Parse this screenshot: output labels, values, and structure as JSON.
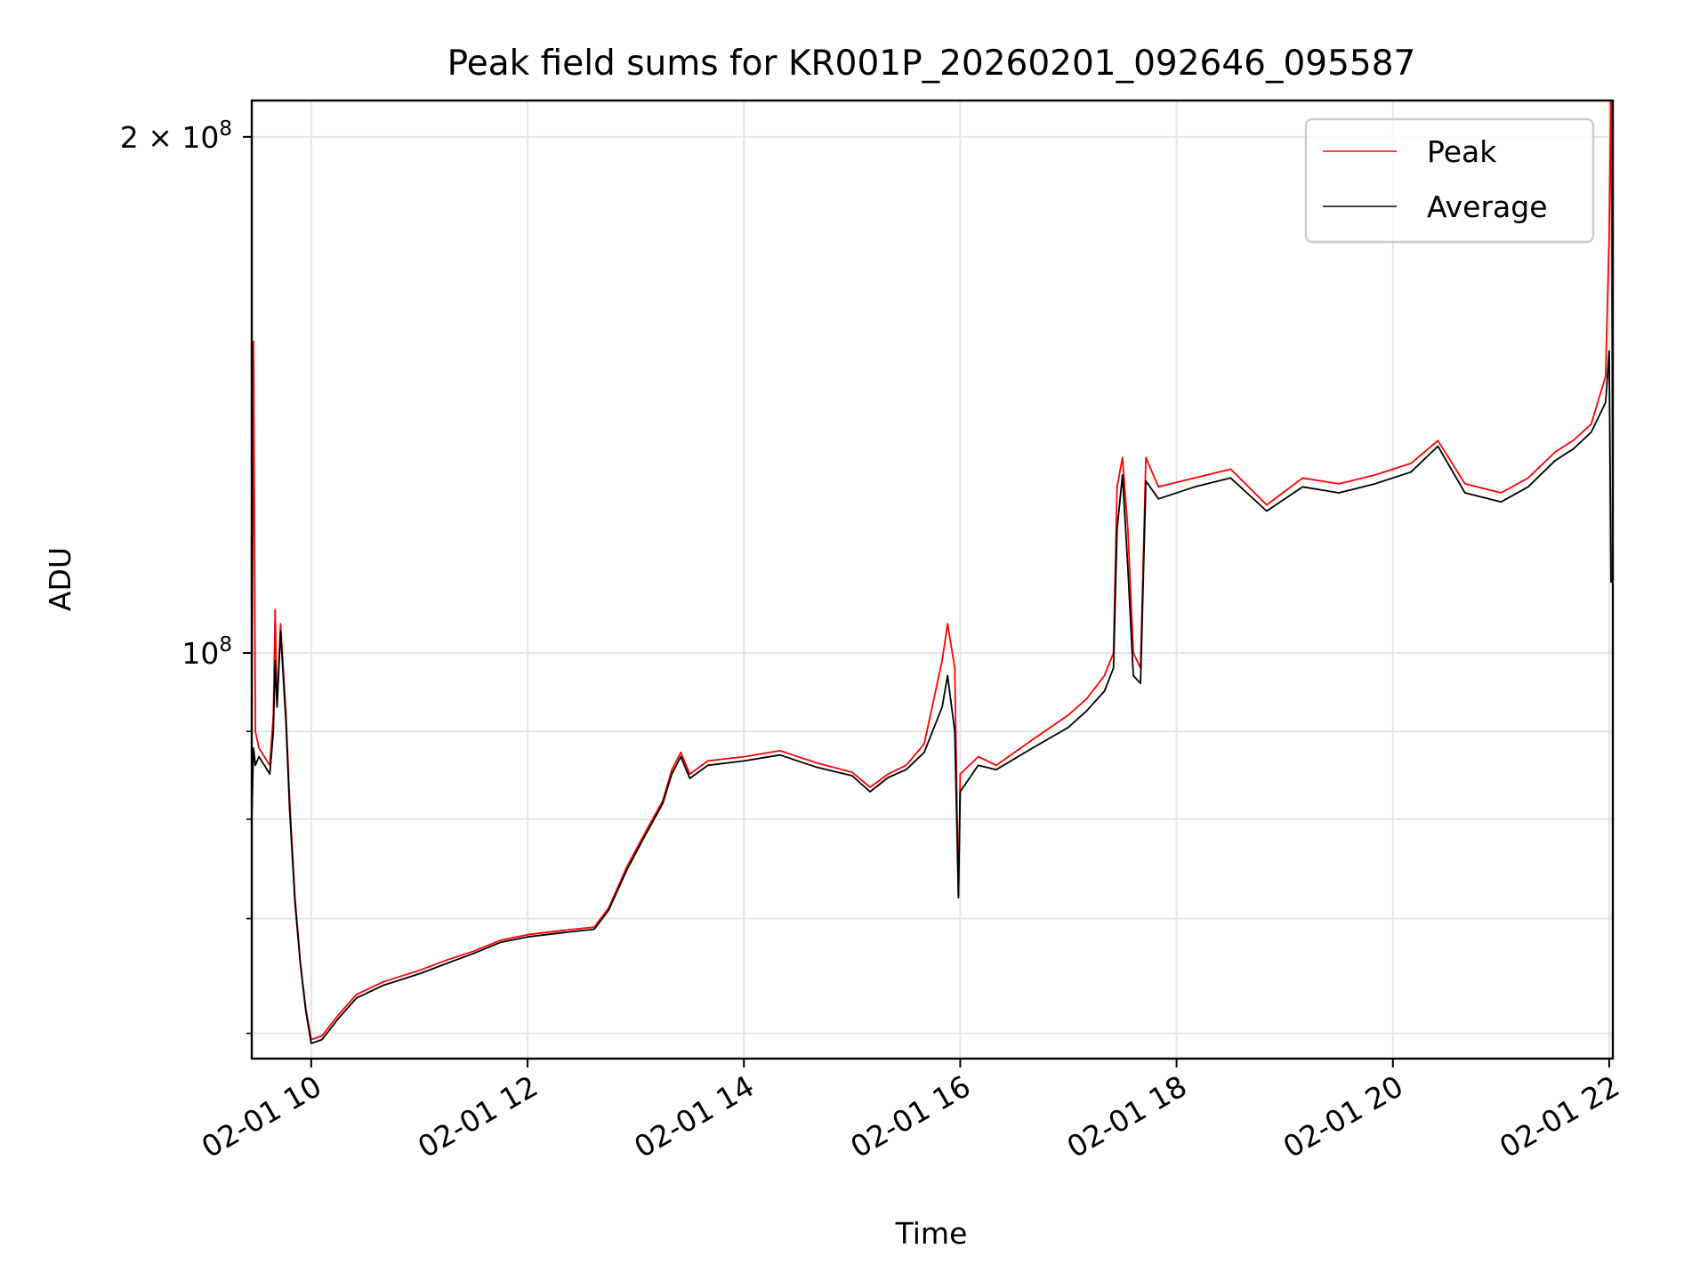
{
  "chart_data": {
    "type": "line",
    "title": "Peak field sums for KR001P_20260201_092646_095587",
    "xlabel": "Time",
    "ylabel": "ADU",
    "x_axis": "datetime",
    "xlim": [
      "2026-02-01 09:27",
      "2026-02-01 22:02"
    ],
    "xticks": [
      {
        "t": "2026-02-01 10:00",
        "label": "02-01 10"
      },
      {
        "t": "2026-02-01 12:00",
        "label": "02-01 12"
      },
      {
        "t": "2026-02-01 14:00",
        "label": "02-01 14"
      },
      {
        "t": "2026-02-01 16:00",
        "label": "02-01 16"
      },
      {
        "t": "2026-02-01 18:00",
        "label": "02-01 18"
      },
      {
        "t": "2026-02-01 20:00",
        "label": "02-01 20"
      },
      {
        "t": "2026-02-01 22:00",
        "label": "02-01 22"
      }
    ],
    "yscale": "log",
    "ylim": [
      58000000,
      210000000
    ],
    "yticks_major": [
      {
        "value": 100000000,
        "base": "10",
        "exp": "8",
        "mult": ""
      },
      {
        "value": 200000000,
        "base": "10",
        "exp": "8",
        "mult": "2 × "
      }
    ],
    "yticks_minor": [
      60000000,
      70000000,
      80000000,
      90000000
    ],
    "grid": true,
    "legend_position": "top-right",
    "series": [
      {
        "name": "Peak",
        "color": "#ff0000",
        "points": [
          [
            "2026-02-01 09:27",
            88000000
          ],
          [
            "2026-02-01 09:28",
            152000000
          ],
          [
            "2026-02-01 09:29",
            90000000
          ],
          [
            "2026-02-01 09:31",
            88000000
          ],
          [
            "2026-02-01 09:34",
            87000000
          ],
          [
            "2026-02-01 09:37",
            86000000
          ],
          [
            "2026-02-01 09:39",
            92000000
          ],
          [
            "2026-02-01 09:40",
            106000000
          ],
          [
            "2026-02-01 09:41",
            93000000
          ],
          [
            "2026-02-01 09:43",
            104000000
          ],
          [
            "2026-02-01 09:46",
            92000000
          ],
          [
            "2026-02-01 09:48",
            82000000
          ],
          [
            "2026-02-01 09:51",
            72000000
          ],
          [
            "2026-02-01 09:54",
            66000000
          ],
          [
            "2026-02-01 09:57",
            62000000
          ],
          [
            "2026-02-01 10:00",
            59500000
          ],
          [
            "2026-02-01 10:06",
            59800000
          ],
          [
            "2026-02-01 10:15",
            61500000
          ],
          [
            "2026-02-01 10:25",
            63200000
          ],
          [
            "2026-02-01 10:40",
            64300000
          ],
          [
            "2026-02-01 11:00",
            65300000
          ],
          [
            "2026-02-01 11:15",
            66200000
          ],
          [
            "2026-02-01 11:30",
            67000000
          ],
          [
            "2026-02-01 11:45",
            68000000
          ],
          [
            "2026-02-01 12:00",
            68500000
          ],
          [
            "2026-02-01 12:20",
            68900000
          ],
          [
            "2026-02-01 12:37",
            69200000
          ],
          [
            "2026-02-01 12:45",
            71000000
          ],
          [
            "2026-02-01 12:55",
            75000000
          ],
          [
            "2026-02-01 13:05",
            78500000
          ],
          [
            "2026-02-01 13:15",
            82000000
          ],
          [
            "2026-02-01 13:20",
            85500000
          ],
          [
            "2026-02-01 13:25",
            87500000
          ],
          [
            "2026-02-01 13:30",
            85000000
          ],
          [
            "2026-02-01 13:40",
            86500000
          ],
          [
            "2026-02-01 14:00",
            87000000
          ],
          [
            "2026-02-01 14:20",
            87700000
          ],
          [
            "2026-02-01 14:40",
            86300000
          ],
          [
            "2026-02-01 15:00",
            85200000
          ],
          [
            "2026-02-01 15:10",
            83500000
          ],
          [
            "2026-02-01 15:20",
            85000000
          ],
          [
            "2026-02-01 15:30",
            86000000
          ],
          [
            "2026-02-01 15:40",
            88500000
          ],
          [
            "2026-02-01 15:50",
            99000000
          ],
          [
            "2026-02-01 15:53",
            104000000
          ],
          [
            "2026-02-01 15:57",
            98000000
          ],
          [
            "2026-02-01 15:59",
            72000000
          ],
          [
            "2026-02-01 16:00",
            85000000
          ],
          [
            "2026-02-01 16:10",
            87000000
          ],
          [
            "2026-02-01 16:20",
            86000000
          ],
          [
            "2026-02-01 16:40",
            89000000
          ],
          [
            "2026-02-01 17:00",
            92000000
          ],
          [
            "2026-02-01 17:10",
            94000000
          ],
          [
            "2026-02-01 17:20",
            97000000
          ],
          [
            "2026-02-01 17:25",
            100000000
          ],
          [
            "2026-02-01 17:27",
            125000000
          ],
          [
            "2026-02-01 17:30",
            130000000
          ],
          [
            "2026-02-01 17:33",
            118000000
          ],
          [
            "2026-02-01 17:36",
            100000000
          ],
          [
            "2026-02-01 17:40",
            98000000
          ],
          [
            "2026-02-01 17:43",
            130000000
          ],
          [
            "2026-02-01 17:50",
            125000000
          ],
          [
            "2026-02-01 18:10",
            126500000
          ],
          [
            "2026-02-01 18:30",
            128000000
          ],
          [
            "2026-02-01 18:50",
            122000000
          ],
          [
            "2026-02-01 19:10",
            126500000
          ],
          [
            "2026-02-01 19:30",
            125500000
          ],
          [
            "2026-02-01 19:50",
            127000000
          ],
          [
            "2026-02-01 20:10",
            129000000
          ],
          [
            "2026-02-01 20:25",
            133000000
          ],
          [
            "2026-02-01 20:40",
            125500000
          ],
          [
            "2026-02-01 21:00",
            124000000
          ],
          [
            "2026-02-01 21:15",
            126500000
          ],
          [
            "2026-02-01 21:30",
            131000000
          ],
          [
            "2026-02-01 21:40",
            133000000
          ],
          [
            "2026-02-01 21:50",
            136000000
          ],
          [
            "2026-02-01 21:58",
            145000000
          ],
          [
            "2026-02-01 22:00",
            175000000
          ],
          [
            "2026-02-01 22:01",
            215000000
          ],
          [
            "2026-02-01 22:02",
            112000000
          ]
        ]
      },
      {
        "name": "Average",
        "color": "#000000",
        "points": [
          [
            "2026-02-01 09:27",
            80000000
          ],
          [
            "2026-02-01 09:28",
            88000000
          ],
          [
            "2026-02-01 09:29",
            86000000
          ],
          [
            "2026-02-01 09:31",
            87000000
          ],
          [
            "2026-02-01 09:34",
            86000000
          ],
          [
            "2026-02-01 09:37",
            85000000
          ],
          [
            "2026-02-01 09:39",
            90000000
          ],
          [
            "2026-02-01 09:40",
            99000000
          ],
          [
            "2026-02-01 09:41",
            93000000
          ],
          [
            "2026-02-01 09:43",
            103000000
          ],
          [
            "2026-02-01 09:46",
            91000000
          ],
          [
            "2026-02-01 09:48",
            81000000
          ],
          [
            "2026-02-01 09:51",
            71500000
          ],
          [
            "2026-02-01 09:54",
            65800000
          ],
          [
            "2026-02-01 09:57",
            61800000
          ],
          [
            "2026-02-01 10:00",
            59200000
          ],
          [
            "2026-02-01 10:06",
            59500000
          ],
          [
            "2026-02-01 10:15",
            61200000
          ],
          [
            "2026-02-01 10:25",
            62900000
          ],
          [
            "2026-02-01 10:40",
            64000000
          ],
          [
            "2026-02-01 11:00",
            65000000
          ],
          [
            "2026-02-01 11:15",
            65900000
          ],
          [
            "2026-02-01 11:30",
            66800000
          ],
          [
            "2026-02-01 11:45",
            67800000
          ],
          [
            "2026-02-01 12:00",
            68300000
          ],
          [
            "2026-02-01 12:20",
            68700000
          ],
          [
            "2026-02-01 12:37",
            69000000
          ],
          [
            "2026-02-01 12:45",
            70800000
          ],
          [
            "2026-02-01 12:55",
            74700000
          ],
          [
            "2026-02-01 13:05",
            78200000
          ],
          [
            "2026-02-01 13:15",
            81700000
          ],
          [
            "2026-02-01 13:20",
            85000000
          ],
          [
            "2026-02-01 13:25",
            87000000
          ],
          [
            "2026-02-01 13:30",
            84500000
          ],
          [
            "2026-02-01 13:40",
            86000000
          ],
          [
            "2026-02-01 14:00",
            86500000
          ],
          [
            "2026-02-01 14:20",
            87200000
          ],
          [
            "2026-02-01 14:40",
            85800000
          ],
          [
            "2026-02-01 15:00",
            84800000
          ],
          [
            "2026-02-01 15:10",
            83000000
          ],
          [
            "2026-02-01 15:20",
            84600000
          ],
          [
            "2026-02-01 15:30",
            85500000
          ],
          [
            "2026-02-01 15:40",
            87500000
          ],
          [
            "2026-02-01 15:50",
            93000000
          ],
          [
            "2026-02-01 15:53",
            97000000
          ],
          [
            "2026-02-01 15:57",
            90000000
          ],
          [
            "2026-02-01 15:59",
            72000000
          ],
          [
            "2026-02-01 16:00",
            83000000
          ],
          [
            "2026-02-01 16:10",
            86000000
          ],
          [
            "2026-02-01 16:20",
            85500000
          ],
          [
            "2026-02-01 16:40",
            88000000
          ],
          [
            "2026-02-01 17:00",
            90500000
          ],
          [
            "2026-02-01 17:10",
            92500000
          ],
          [
            "2026-02-01 17:20",
            95000000
          ],
          [
            "2026-02-01 17:25",
            98000000
          ],
          [
            "2026-02-01 17:27",
            118000000
          ],
          [
            "2026-02-01 17:30",
            127000000
          ],
          [
            "2026-02-01 17:33",
            112000000
          ],
          [
            "2026-02-01 17:36",
            97000000
          ],
          [
            "2026-02-01 17:40",
            96000000
          ],
          [
            "2026-02-01 17:43",
            126000000
          ],
          [
            "2026-02-01 17:50",
            123000000
          ],
          [
            "2026-02-01 18:10",
            125000000
          ],
          [
            "2026-02-01 18:30",
            126500000
          ],
          [
            "2026-02-01 18:50",
            121000000
          ],
          [
            "2026-02-01 19:10",
            125000000
          ],
          [
            "2026-02-01 19:30",
            124000000
          ],
          [
            "2026-02-01 19:50",
            125500000
          ],
          [
            "2026-02-01 20:10",
            127500000
          ],
          [
            "2026-02-01 20:25",
            132000000
          ],
          [
            "2026-02-01 20:40",
            124000000
          ],
          [
            "2026-02-01 21:00",
            122500000
          ],
          [
            "2026-02-01 21:15",
            125000000
          ],
          [
            "2026-02-01 21:30",
            129500000
          ],
          [
            "2026-02-01 21:40",
            131500000
          ],
          [
            "2026-02-01 21:50",
            134500000
          ],
          [
            "2026-02-01 21:58",
            140000000
          ],
          [
            "2026-02-01 22:00",
            150000000
          ],
          [
            "2026-02-01 22:01",
            110000000
          ],
          [
            "2026-02-01 22:02",
            110000000
          ]
        ]
      }
    ]
  }
}
